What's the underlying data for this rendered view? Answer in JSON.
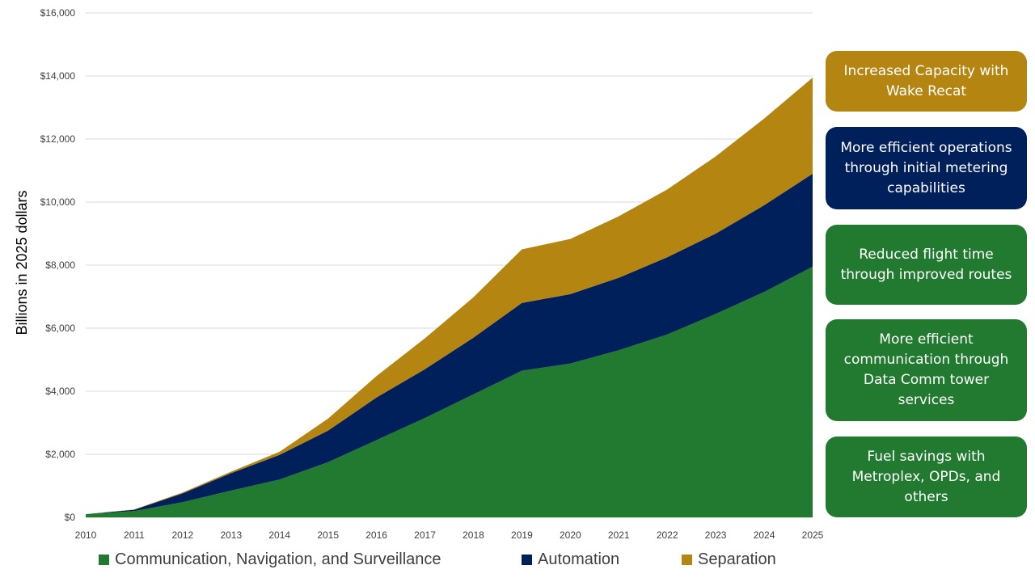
{
  "colors": {
    "cns": "#217A2F",
    "automation": "#00205C",
    "separation": "#B58512",
    "grid": "#d9d9d9",
    "axis": "#bfbfbf"
  },
  "chart_data": {
    "type": "area",
    "stacked": true,
    "ylabel": "Billions in 2025 dollars",
    "xlabel": "",
    "ylim": [
      0,
      16000
    ],
    "y_ticks": [
      "$0",
      "$2,000",
      "$4,000",
      "$6,000",
      "$8,000",
      "$10,000",
      "$12,000",
      "$14,000",
      "$16,000"
    ],
    "x": [
      "2010",
      "2011",
      "2012",
      "2013",
      "2014",
      "2015",
      "2016",
      "2017",
      "2018",
      "2019",
      "2020",
      "2021",
      "2022",
      "2023",
      "2024",
      "2025"
    ],
    "grid": true,
    "legend_position": "bottom",
    "series": [
      {
        "name": "Communication, Navigation, and Surveillance",
        "color": "#217A2F",
        "values": [
          100,
          200,
          480,
          850,
          1200,
          1750,
          2450,
          3150,
          3900,
          4650,
          4880,
          5300,
          5800,
          6450,
          7150,
          7950
        ]
      },
      {
        "name": "Automation",
        "color": "#00205C",
        "values": [
          0,
          40,
          280,
          550,
          780,
          1000,
          1350,
          1550,
          1800,
          2150,
          2200,
          2300,
          2450,
          2550,
          2750,
          2950
        ]
      },
      {
        "name": "Separation",
        "color": "#B58512",
        "values": [
          0,
          10,
          30,
          50,
          100,
          380,
          680,
          980,
          1280,
          1700,
          1750,
          1950,
          2150,
          2450,
          2750,
          3050
        ]
      }
    ]
  },
  "callouts": [
    {
      "text": "Increased Capacity with Wake Recat",
      "color": "#B58512"
    },
    {
      "text": "More efficient operations through initial metering capabilities",
      "color": "#00205C"
    },
    {
      "text": "Reduced flight time through improved routes",
      "color": "#217A2F"
    },
    {
      "text": "More efficient communication through Data Comm tower services",
      "color": "#217A2F"
    },
    {
      "text": "Fuel savings with Metroplex, OPDs, and others",
      "color": "#217A2F"
    }
  ]
}
